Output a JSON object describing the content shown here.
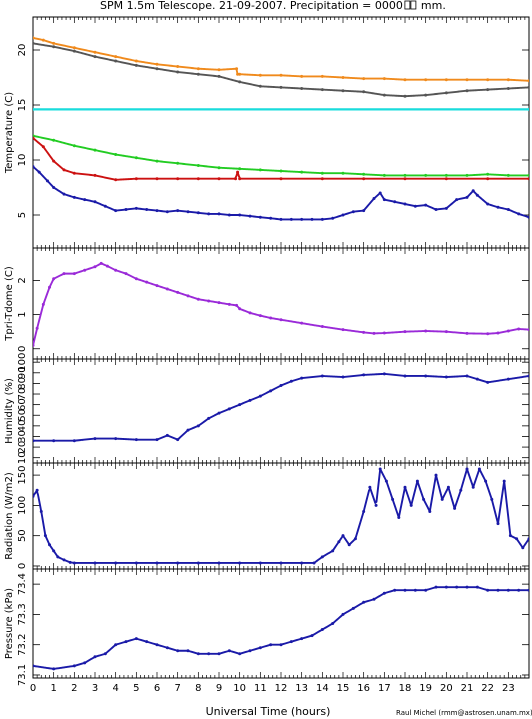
{
  "header": {
    "title": "SPM 1.5m Telescope. 21-09-2007. Precipitation = 0000",
    "title_glyph": "□□",
    "title_suffix": "mm."
  },
  "credit": "Raul Michel (rmm@astrosen.unam.mx)",
  "colors": {
    "orange": "#f08a1c",
    "gray": "#555555",
    "cyan": "#19dcdc",
    "green": "#22cc22",
    "red": "#cc1111",
    "blue": "#1a1aa8",
    "purple": "#9a2ad8"
  },
  "chart_data": [
    {
      "type": "scatter",
      "ylabel": "Temperature (C)",
      "xlim": [
        0,
        24
      ],
      "ylim": [
        2,
        23
      ],
      "yticks": [
        5,
        10,
        15,
        20
      ],
      "series": [
        {
          "color": "orange",
          "x": [
            0,
            0.5,
            1,
            2,
            3,
            4,
            5,
            6,
            7,
            8,
            9,
            9.85,
            9.9,
            10,
            11,
            12,
            13,
            14,
            15,
            16,
            17,
            18,
            19,
            20,
            21,
            22,
            23,
            24
          ],
          "y": [
            21.1,
            20.9,
            20.6,
            20.2,
            19.8,
            19.4,
            19.0,
            18.7,
            18.5,
            18.3,
            18.2,
            18.3,
            17.8,
            17.8,
            17.7,
            17.7,
            17.6,
            17.6,
            17.5,
            17.4,
            17.4,
            17.3,
            17.3,
            17.3,
            17.3,
            17.3,
            17.3,
            17.2
          ]
        },
        {
          "color": "gray",
          "x": [
            0,
            1,
            2,
            3,
            4,
            5,
            6,
            7,
            8,
            9,
            10,
            11,
            12,
            13,
            14,
            15,
            16,
            17,
            18,
            19,
            20,
            21,
            22,
            23,
            24
          ],
          "y": [
            20.6,
            20.3,
            19.9,
            19.4,
            19.0,
            18.6,
            18.3,
            18.0,
            17.8,
            17.6,
            17.1,
            16.7,
            16.6,
            16.5,
            16.4,
            16.3,
            16.2,
            15.9,
            15.8,
            15.9,
            16.1,
            16.3,
            16.4,
            16.5,
            16.6
          ]
        },
        {
          "color": "cyan",
          "x": [
            0,
            24
          ],
          "y": [
            14.6,
            14.6
          ]
        },
        {
          "color": "green",
          "x": [
            0,
            1,
            2,
            3,
            4,
            5,
            6,
            7,
            8,
            9,
            10,
            11,
            12,
            13,
            14,
            15,
            16,
            17,
            18,
            19,
            20,
            21,
            22,
            23,
            24
          ],
          "y": [
            12.2,
            11.8,
            11.3,
            10.9,
            10.5,
            10.2,
            9.9,
            9.7,
            9.5,
            9.3,
            9.2,
            9.1,
            9.0,
            8.9,
            8.8,
            8.8,
            8.7,
            8.6,
            8.6,
            8.6,
            8.6,
            8.6,
            8.7,
            8.6,
            8.6
          ]
        },
        {
          "color": "red",
          "x": [
            0,
            0.5,
            1,
            1.5,
            2,
            3,
            4,
            5,
            6,
            7,
            8,
            9,
            9.8,
            9.9,
            10,
            12,
            14,
            16,
            18,
            20,
            22,
            24
          ],
          "y": [
            12.0,
            11.2,
            9.9,
            9.1,
            8.8,
            8.6,
            8.2,
            8.3,
            8.3,
            8.3,
            8.3,
            8.3,
            8.3,
            8.9,
            8.3,
            8.3,
            8.3,
            8.3,
            8.3,
            8.3,
            8.3,
            8.3
          ]
        },
        {
          "color": "blue",
          "x": [
            0,
            0.3,
            0.7,
            1,
            1.5,
            2,
            2.5,
            3,
            3.5,
            4,
            4.5,
            5,
            5.5,
            6,
            6.5,
            7,
            7.5,
            8,
            8.5,
            9,
            9.5,
            10,
            10.5,
            11,
            11.5,
            12,
            12.5,
            13,
            13.5,
            14,
            14.5,
            15,
            15.5,
            16,
            16.5,
            16.8,
            17,
            17.5,
            18,
            18.5,
            19,
            19.5,
            20,
            20.5,
            21,
            21.3,
            21.5,
            22,
            22.5,
            23,
            23.5,
            24
          ],
          "y": [
            9.4,
            8.9,
            8.1,
            7.5,
            6.9,
            6.6,
            6.4,
            6.2,
            5.8,
            5.4,
            5.5,
            5.6,
            5.5,
            5.4,
            5.3,
            5.4,
            5.3,
            5.2,
            5.1,
            5.1,
            5.0,
            5.0,
            4.9,
            4.8,
            4.7,
            4.6,
            4.6,
            4.6,
            4.6,
            4.6,
            4.7,
            5.0,
            5.3,
            5.4,
            6.5,
            7.0,
            6.4,
            6.2,
            6.0,
            5.8,
            5.9,
            5.5,
            5.6,
            6.4,
            6.6,
            7.2,
            6.8,
            6.0,
            5.7,
            5.5,
            5.1,
            4.8
          ]
        }
      ]
    },
    {
      "type": "scatter",
      "ylabel": "Tpri-Tdome (C)",
      "xlim": [
        0,
        24
      ],
      "ylim": [
        -0.3,
        2.95
      ],
      "yticks": [
        0,
        1,
        2
      ],
      "series": [
        {
          "color": "purple",
          "x": [
            0,
            0.2,
            0.5,
            0.8,
            1,
            1.5,
            2,
            2.5,
            3,
            3.3,
            3.6,
            4,
            4.5,
            5,
            5.5,
            6,
            6.5,
            7,
            7.5,
            8,
            8.5,
            9,
            9.5,
            9.85,
            10,
            10.5,
            11,
            11.5,
            12,
            13,
            14,
            15,
            16,
            16.5,
            17,
            18,
            19,
            20,
            21,
            22,
            22.5,
            23,
            23.5,
            24
          ],
          "y": [
            0.1,
            0.6,
            1.3,
            1.8,
            2.05,
            2.2,
            2.2,
            2.3,
            2.4,
            2.5,
            2.42,
            2.3,
            2.2,
            2.05,
            1.95,
            1.85,
            1.75,
            1.65,
            1.55,
            1.45,
            1.4,
            1.35,
            1.3,
            1.27,
            1.17,
            1.05,
            0.97,
            0.9,
            0.85,
            0.75,
            0.65,
            0.56,
            0.48,
            0.45,
            0.46,
            0.5,
            0.52,
            0.5,
            0.45,
            0.44,
            0.46,
            0.52,
            0.58,
            0.56
          ]
        }
      ]
    },
    {
      "type": "scatter",
      "ylabel": "Humidity (%)",
      "xlim": [
        0,
        24
      ],
      "ylim": [
        5,
        103
      ],
      "yticks": [
        10,
        20,
        30,
        40,
        50,
        60,
        70,
        80,
        90,
        100
      ],
      "series": [
        {
          "color": "blue",
          "x": [
            0,
            1,
            2,
            3,
            4,
            5,
            6,
            6.5,
            7,
            7.5,
            8,
            8.5,
            9,
            9.5,
            10,
            10.5,
            11,
            11.5,
            12,
            12.5,
            13,
            14,
            15,
            16,
            17,
            18,
            19,
            20,
            21,
            21.5,
            22,
            23,
            24
          ],
          "y": [
            26,
            26,
            26,
            28,
            28,
            27,
            27,
            31,
            27,
            36,
            40,
            47,
            52,
            56,
            60,
            64,
            68,
            73,
            78,
            82,
            85,
            87,
            86,
            88,
            89,
            87,
            87,
            86,
            87,
            84,
            81,
            84,
            87
          ]
        }
      ]
    },
    {
      "type": "scatter",
      "ylabel": "Radiation (W/m2)",
      "xlim": [
        0,
        24
      ],
      "ylim": [
        -5,
        170
      ],
      "yticks": [
        0,
        50,
        100,
        150
      ],
      "series": [
        {
          "color": "blue",
          "x": [
            0,
            0.2,
            0.4,
            0.6,
            0.8,
            1,
            1.2,
            1.5,
            1.8,
            2,
            3,
            4,
            5,
            6,
            7,
            8,
            9,
            10,
            11,
            12,
            13,
            13.6,
            14,
            14.5,
            14.8,
            15,
            15.3,
            15.6,
            16,
            16.3,
            16.6,
            16.8,
            17.1,
            17.4,
            17.7,
            18,
            18.3,
            18.6,
            18.9,
            19.2,
            19.5,
            19.8,
            20.1,
            20.4,
            20.7,
            21,
            21.3,
            21.6,
            21.9,
            22.2,
            22.5,
            22.8,
            23.1,
            23.4,
            23.7,
            24
          ],
          "y": [
            115,
            125,
            90,
            50,
            35,
            25,
            15,
            10,
            6,
            5,
            5,
            5,
            5,
            5,
            5,
            5,
            5,
            5,
            5,
            5,
            5,
            5,
            15,
            25,
            40,
            50,
            35,
            45,
            90,
            130,
            100,
            160,
            140,
            110,
            80,
            130,
            100,
            140,
            110,
            90,
            150,
            110,
            130,
            95,
            125,
            160,
            130,
            160,
            140,
            110,
            70,
            140,
            50,
            45,
            30,
            45
          ]
        }
      ]
    },
    {
      "type": "scatter",
      "ylabel": "Pressure (kPa)",
      "xlabel": "Universal Time (hours)",
      "xlim": [
        0,
        24
      ],
      "ylim": [
        73.09,
        73.45
      ],
      "yticks": [
        73.1,
        73.2,
        73.3,
        73.4
      ],
      "xticks": [
        0,
        1,
        2,
        3,
        4,
        5,
        6,
        7,
        8,
        9,
        10,
        11,
        12,
        13,
        14,
        15,
        16,
        17,
        18,
        19,
        20,
        21,
        22,
        23
      ],
      "series": [
        {
          "color": "blue",
          "x": [
            0,
            1,
            2,
            2.5,
            3,
            3.5,
            4,
            4.5,
            5,
            5.5,
            6,
            6.5,
            7,
            7.5,
            8,
            8.5,
            9,
            9.5,
            10,
            10.5,
            11,
            11.5,
            12,
            12.5,
            13,
            13.5,
            14,
            14.5,
            15,
            15.5,
            16,
            16.5,
            17,
            17.5,
            18,
            18.5,
            19,
            19.5,
            20,
            20.5,
            21,
            21.5,
            22,
            22.5,
            23,
            23.5,
            24
          ],
          "y": [
            73.13,
            73.12,
            73.13,
            73.14,
            73.16,
            73.17,
            73.2,
            73.21,
            73.22,
            73.21,
            73.2,
            73.19,
            73.18,
            73.18,
            73.17,
            73.17,
            73.17,
            73.18,
            73.17,
            73.18,
            73.19,
            73.2,
            73.2,
            73.21,
            73.22,
            73.23,
            73.25,
            73.27,
            73.3,
            73.32,
            73.34,
            73.35,
            73.37,
            73.38,
            73.38,
            73.38,
            73.38,
            73.39,
            73.39,
            73.39,
            73.39,
            73.39,
            73.38,
            73.38,
            73.38,
            73.38,
            73.38
          ]
        }
      ]
    }
  ]
}
